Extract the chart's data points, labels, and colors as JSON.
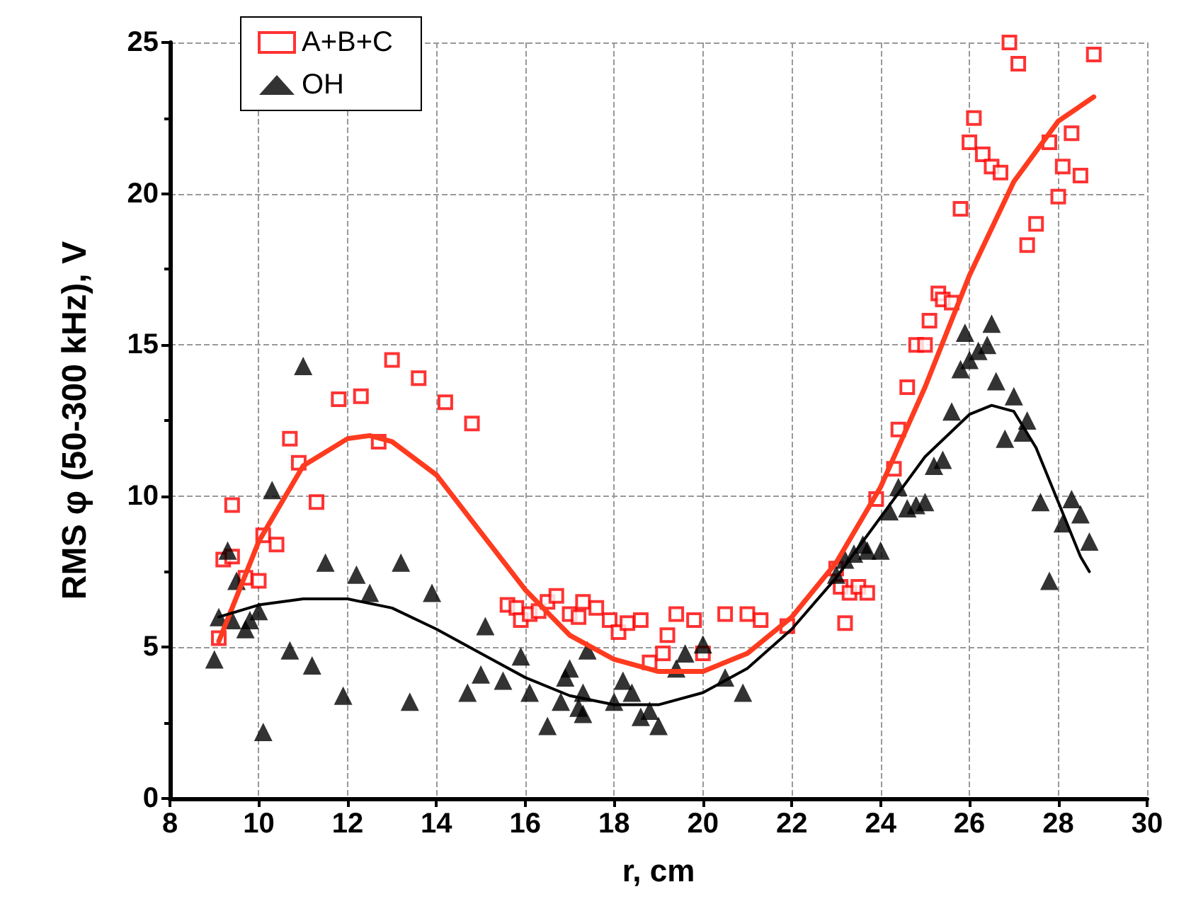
{
  "chart_data": {
    "type": "scatter",
    "xlabel": "r, cm",
    "ylabel": "RMS φ (50-300 kHz), V",
    "xlim": [
      8,
      30
    ],
    "xticks": [
      8,
      10,
      12,
      14,
      16,
      18,
      20,
      22,
      24,
      26,
      28,
      30
    ],
    "ylim": [
      0,
      25
    ],
    "yticks": [
      0,
      5,
      10,
      15,
      20,
      25
    ],
    "grid": true,
    "legend": "top left",
    "series": [
      {
        "name": "A+B+C",
        "color": "#ff0000",
        "marker": "square",
        "x": [
          9.1,
          9.2,
          9.4,
          9.4,
          9.7,
          10.0,
          10.1,
          10.4,
          10.7,
          10.9,
          11.3,
          11.8,
          12.3,
          12.7,
          13.0,
          13.6,
          14.2,
          14.8,
          15.6,
          15.8,
          15.9,
          16.1,
          16.3,
          16.5,
          16.7,
          17.0,
          17.2,
          17.3,
          17.6,
          17.9,
          18.1,
          18.3,
          18.6,
          18.8,
          19.1,
          19.2,
          19.4,
          19.8,
          20.0,
          20.5,
          21.0,
          21.3,
          21.9,
          23.0,
          23.1,
          23.2,
          23.3,
          23.5,
          23.7,
          23.9,
          24.3,
          24.4,
          24.6,
          24.8,
          25.0,
          25.1,
          25.3,
          25.4,
          25.6,
          25.8,
          26.0,
          26.1,
          26.3,
          26.5,
          26.7,
          26.9,
          27.1,
          27.3,
          27.5,
          27.8,
          28.0,
          28.1,
          28.3,
          28.5,
          28.8
        ],
        "values": [
          5.3,
          7.9,
          9.7,
          8.0,
          7.3,
          7.2,
          8.7,
          8.4,
          11.9,
          11.1,
          9.8,
          13.2,
          13.3,
          11.8,
          14.5,
          13.9,
          13.1,
          12.4,
          6.4,
          6.3,
          5.9,
          6.1,
          6.2,
          6.5,
          6.7,
          6.1,
          6.0,
          6.5,
          6.3,
          5.9,
          5.5,
          5.8,
          5.9,
          4.5,
          4.8,
          5.4,
          6.1,
          5.9,
          4.8,
          6.1,
          6.1,
          5.9,
          5.7,
          7.6,
          7.0,
          5.8,
          6.8,
          7.0,
          6.8,
          9.9,
          10.9,
          12.2,
          13.6,
          15.0,
          15.0,
          15.8,
          16.7,
          16.5,
          16.4,
          19.5,
          21.7,
          22.5,
          21.3,
          20.9,
          20.7,
          25.0,
          24.3,
          18.3,
          19.0,
          21.7,
          19.9,
          20.9,
          22.0,
          20.6,
          24.6
        ]
      },
      {
        "name": "OH",
        "color": "#000000",
        "marker": "triangle",
        "x": [
          9.0,
          9.1,
          9.3,
          9.4,
          9.5,
          9.7,
          9.8,
          10.0,
          10.1,
          10.3,
          10.7,
          11.0,
          11.2,
          11.5,
          11.9,
          12.2,
          12.5,
          13.2,
          13.4,
          13.9,
          14.7,
          15.0,
          15.1,
          15.5,
          15.9,
          16.1,
          16.5,
          16.8,
          16.9,
          17.0,
          17.2,
          17.3,
          17.3,
          17.4,
          18.0,
          18.2,
          18.4,
          18.6,
          18.8,
          19.0,
          19.4,
          19.6,
          20.0,
          20.5,
          20.9,
          23.0,
          23.2,
          23.4,
          23.6,
          23.7,
          24.0,
          24.2,
          24.4,
          24.6,
          24.8,
          25.0,
          25.2,
          25.4,
          25.6,
          25.8,
          25.9,
          26.0,
          26.2,
          26.4,
          26.5,
          26.6,
          26.8,
          27.0,
          27.2,
          27.3,
          27.6,
          27.8,
          28.1,
          28.3,
          28.5,
          28.7
        ],
        "values": [
          4.6,
          6.0,
          8.2,
          5.9,
          7.2,
          5.6,
          5.9,
          6.2,
          2.2,
          10.2,
          4.9,
          14.3,
          4.4,
          7.8,
          3.4,
          7.4,
          6.8,
          7.8,
          3.2,
          6.8,
          3.5,
          4.1,
          5.7,
          3.9,
          4.7,
          3.5,
          2.4,
          3.2,
          4.0,
          4.3,
          3.0,
          3.5,
          2.8,
          4.9,
          3.2,
          3.9,
          3.5,
          2.7,
          2.9,
          2.4,
          4.3,
          4.8,
          5.1,
          4.0,
          3.5,
          7.4,
          7.9,
          8.1,
          8.4,
          8.2,
          8.2,
          9.5,
          10.3,
          9.6,
          9.7,
          9.8,
          11.0,
          11.2,
          12.8,
          14.2,
          15.4,
          14.5,
          14.8,
          15.0,
          15.7,
          13.8,
          11.9,
          13.3,
          12.1,
          12.5,
          9.8,
          7.2,
          9.1,
          9.9,
          9.4,
          8.5
        ]
      },
      {
        "type": "line",
        "color": "#ff3b1f",
        "marker": "none",
        "x": [
          9.1,
          10,
          11,
          12,
          12.5,
          13,
          14,
          15,
          16,
          17,
          18,
          19,
          20,
          21,
          22,
          23,
          24,
          25,
          26,
          27,
          28,
          28.8
        ],
        "values": [
          5.2,
          8.5,
          11,
          11.9,
          12,
          11.8,
          10.7,
          8.8,
          6.9,
          5.4,
          4.6,
          4.2,
          4.2,
          4.8,
          6.0,
          7.8,
          10.3,
          13.6,
          17.3,
          20.4,
          22.4,
          23.2
        ]
      },
      {
        "type": "line",
        "color": "#000000",
        "marker": "none",
        "x": [
          9.1,
          10,
          11,
          12,
          13,
          14,
          15,
          16,
          17,
          18,
          19,
          20,
          21,
          22,
          23,
          24,
          25,
          26,
          26.5,
          27,
          27.5,
          28,
          28.5,
          28.7
        ],
        "values": [
          6.0,
          6.4,
          6.6,
          6.6,
          6.3,
          5.6,
          4.8,
          4.0,
          3.4,
          3.1,
          3.1,
          3.5,
          4.3,
          5.6,
          7.3,
          9.3,
          11.3,
          12.7,
          13.0,
          12.8,
          11.6,
          9.8,
          8.0,
          7.5
        ]
      }
    ]
  }
}
